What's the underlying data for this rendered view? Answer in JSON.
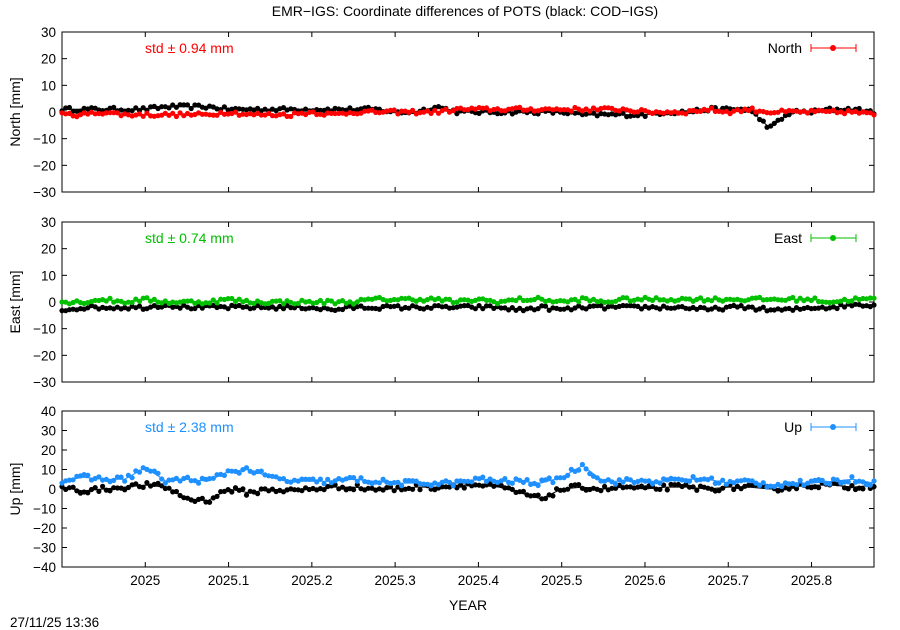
{
  "title": "EMR−IGS: Coordinate differences of POTS (black: COD−IGS)",
  "xlabel": "YEAR",
  "timestamp": "27/11/25 13:36",
  "colors": {
    "reference": "#000000",
    "north": "#ff0000",
    "east": "#00c000",
    "up": "#1e90ff"
  },
  "chart_data": [
    {
      "type": "scatter",
      "panel": "north",
      "ylabel": "North [mm]",
      "legend": "North",
      "legend_position": "top-right",
      "std_text": "std ± 0.94 mm",
      "xlim": [
        2024.9,
        2025.875
      ],
      "ylim": [
        -30,
        30
      ],
      "yticks": [
        30,
        20,
        10,
        0,
        -10,
        -20,
        -30
      ],
      "ytick_labels": [
        "30",
        "20",
        "10",
        "0",
        "−10",
        "−20",
        "−30"
      ],
      "series": [
        {
          "name": "North",
          "color": "#ff0000",
          "x": [
            2024.9,
            2024.925,
            2024.95,
            2024.975,
            2025.0,
            2025.025,
            2025.05,
            2025.075,
            2025.1,
            2025.125,
            2025.15,
            2025.175,
            2025.2,
            2025.225,
            2025.25,
            2025.275,
            2025.3,
            2025.325,
            2025.35,
            2025.375,
            2025.4,
            2025.425,
            2025.45,
            2025.475,
            2025.5,
            2025.525,
            2025.55,
            2025.575,
            2025.6,
            2025.625,
            2025.65,
            2025.675,
            2025.7,
            2025.725,
            2025.75,
            2025.775,
            2025.8,
            2025.825,
            2025.85,
            2025.875
          ],
          "y": [
            -1,
            -1,
            0,
            -1,
            -1,
            -1,
            -1,
            -1,
            0,
            -1,
            -1,
            -1,
            0,
            -1,
            0,
            0,
            0,
            0,
            0,
            1,
            1,
            1,
            1,
            1,
            1,
            1,
            1,
            1,
            0,
            0,
            0,
            1,
            0,
            1,
            0,
            0,
            0,
            0,
            0,
            -1
          ]
        },
        {
          "name": "",
          "color": "#000000",
          "x": [
            2024.9,
            2024.925,
            2024.95,
            2024.975,
            2025.0,
            2025.025,
            2025.05,
            2025.075,
            2025.1,
            2025.125,
            2025.15,
            2025.175,
            2025.2,
            2025.225,
            2025.25,
            2025.275,
            2025.3,
            2025.325,
            2025.35,
            2025.375,
            2025.4,
            2025.425,
            2025.45,
            2025.475,
            2025.5,
            2025.525,
            2025.55,
            2025.575,
            2025.6,
            2025.625,
            2025.65,
            2025.675,
            2025.7,
            2025.725,
            2025.75,
            2025.775,
            2025.8,
            2025.825,
            2025.85,
            2025.875
          ],
          "y": [
            1,
            1,
            1,
            1,
            1,
            2,
            2,
            2,
            1,
            1,
            1,
            1,
            1,
            1,
            1,
            1,
            0,
            0,
            2,
            0,
            0,
            0,
            0,
            0,
            0,
            -1,
            -1,
            -1,
            -1,
            0,
            0,
            1,
            1,
            1,
            -6,
            0,
            0,
            1,
            1,
            0
          ]
        }
      ]
    },
    {
      "type": "scatter",
      "panel": "east",
      "ylabel": "East [mm]",
      "legend": "East",
      "legend_position": "top-right",
      "std_text": "std ± 0.74 mm",
      "xlim": [
        2024.9,
        2025.875
      ],
      "ylim": [
        -30,
        30
      ],
      "yticks": [
        30,
        20,
        10,
        0,
        -10,
        -20,
        -30
      ],
      "ytick_labels": [
        "30",
        "20",
        "10",
        "0",
        "−10",
        "−20",
        "−30"
      ],
      "series": [
        {
          "name": "East",
          "color": "#00c000",
          "x": [
            2024.9,
            2024.925,
            2024.95,
            2024.975,
            2025.0,
            2025.025,
            2025.05,
            2025.075,
            2025.1,
            2025.125,
            2025.15,
            2025.175,
            2025.2,
            2025.225,
            2025.25,
            2025.275,
            2025.3,
            2025.325,
            2025.35,
            2025.375,
            2025.4,
            2025.425,
            2025.45,
            2025.475,
            2025.5,
            2025.525,
            2025.55,
            2025.575,
            2025.6,
            2025.625,
            2025.65,
            2025.675,
            2025.7,
            2025.725,
            2025.75,
            2025.775,
            2025.8,
            2025.825,
            2025.85,
            2025.875
          ],
          "y": [
            0,
            0,
            1,
            0,
            1,
            0,
            0,
            0,
            1,
            0,
            0,
            0,
            0,
            0,
            0,
            1,
            1,
            1,
            1,
            0,
            1,
            0,
            1,
            1,
            0,
            1,
            0,
            1,
            1,
            1,
            1,
            1,
            1,
            1,
            1,
            1,
            1,
            0,
            1,
            1
          ]
        },
        {
          "name": "",
          "color": "#000000",
          "x": [
            2024.9,
            2024.925,
            2024.95,
            2024.975,
            2025.0,
            2025.025,
            2025.05,
            2025.075,
            2025.1,
            2025.125,
            2025.15,
            2025.175,
            2025.2,
            2025.225,
            2025.25,
            2025.275,
            2025.3,
            2025.325,
            2025.35,
            2025.375,
            2025.4,
            2025.425,
            2025.45,
            2025.475,
            2025.5,
            2025.525,
            2025.55,
            2025.575,
            2025.6,
            2025.625,
            2025.65,
            2025.675,
            2025.7,
            2025.725,
            2025.75,
            2025.775,
            2025.8,
            2025.825,
            2025.85,
            2025.875
          ],
          "y": [
            -3,
            -2,
            -2,
            -2,
            -2,
            -1,
            -2,
            -2,
            -2,
            -2,
            -2,
            -2,
            -2,
            -3,
            -2,
            -2,
            -2,
            -2,
            -2,
            -2,
            -2,
            -2,
            -3,
            -2,
            -3,
            -2,
            -2,
            -2,
            -2,
            -2,
            -2,
            -3,
            -2,
            -2,
            -3,
            -3,
            -2,
            -2,
            -1,
            -1
          ]
        }
      ]
    },
    {
      "type": "scatter",
      "panel": "up",
      "ylabel": "Up [mm]",
      "legend": "Up",
      "legend_position": "top-right",
      "std_text": "std ± 2.38 mm",
      "xlim": [
        2024.9,
        2025.875
      ],
      "ylim": [
        -40,
        40
      ],
      "xticks": [
        2025,
        2025.1,
        2025.2,
        2025.3,
        2025.4,
        2025.5,
        2025.6,
        2025.7,
        2025.8
      ],
      "xtick_labels": [
        "2025",
        "2025.1",
        "2025.2",
        "2025.3",
        "2025.4",
        "2025.5",
        "2025.6",
        "2025.7",
        "2025.8"
      ],
      "yticks": [
        40,
        30,
        20,
        10,
        0,
        -10,
        -20,
        -30,
        -40
      ],
      "ytick_labels": [
        "40",
        "30",
        "20",
        "10",
        "0",
        "−10",
        "−20",
        "−30",
        "−40"
      ],
      "series": [
        {
          "name": "Up",
          "color": "#1e90ff",
          "x": [
            2024.9,
            2024.925,
            2024.95,
            2024.975,
            2025.0,
            2025.025,
            2025.05,
            2025.075,
            2025.1,
            2025.125,
            2025.15,
            2025.175,
            2025.2,
            2025.225,
            2025.25,
            2025.275,
            2025.3,
            2025.325,
            2025.35,
            2025.375,
            2025.4,
            2025.425,
            2025.45,
            2025.475,
            2025.5,
            2025.525,
            2025.55,
            2025.575,
            2025.6,
            2025.625,
            2025.65,
            2025.675,
            2025.7,
            2025.725,
            2025.75,
            2025.775,
            2025.8,
            2025.825,
            2025.85,
            2025.875
          ],
          "y": [
            4,
            6,
            5,
            5,
            11,
            4,
            5,
            4,
            9,
            10,
            6,
            4,
            4,
            4,
            5,
            4,
            3,
            3,
            3,
            3,
            5,
            4,
            4,
            3,
            6,
            12,
            4,
            4,
            4,
            4,
            5,
            5,
            3,
            4,
            2,
            3,
            3,
            4,
            5,
            3
          ]
        },
        {
          "name": "",
          "color": "#000000",
          "x": [
            2024.9,
            2024.925,
            2024.95,
            2024.975,
            2025.0,
            2025.025,
            2025.05,
            2025.075,
            2025.1,
            2025.125,
            2025.15,
            2025.175,
            2025.2,
            2025.225,
            2025.25,
            2025.275,
            2025.3,
            2025.325,
            2025.35,
            2025.375,
            2025.4,
            2025.425,
            2025.45,
            2025.475,
            2025.5,
            2025.525,
            2025.55,
            2025.575,
            2025.6,
            2025.625,
            2025.65,
            2025.675,
            2025.7,
            2025.725,
            2025.75,
            2025.775,
            2025.8,
            2025.825,
            2025.85,
            2025.875
          ],
          "y": [
            1,
            -1,
            0,
            1,
            2,
            1,
            -5,
            -6,
            0,
            -2,
            0,
            -1,
            0,
            1,
            1,
            0,
            0,
            1,
            1,
            2,
            2,
            1,
            -2,
            -5,
            0,
            1,
            0,
            1,
            0,
            1,
            1,
            0,
            1,
            1,
            0,
            1,
            2,
            2,
            1,
            2
          ]
        }
      ]
    }
  ]
}
